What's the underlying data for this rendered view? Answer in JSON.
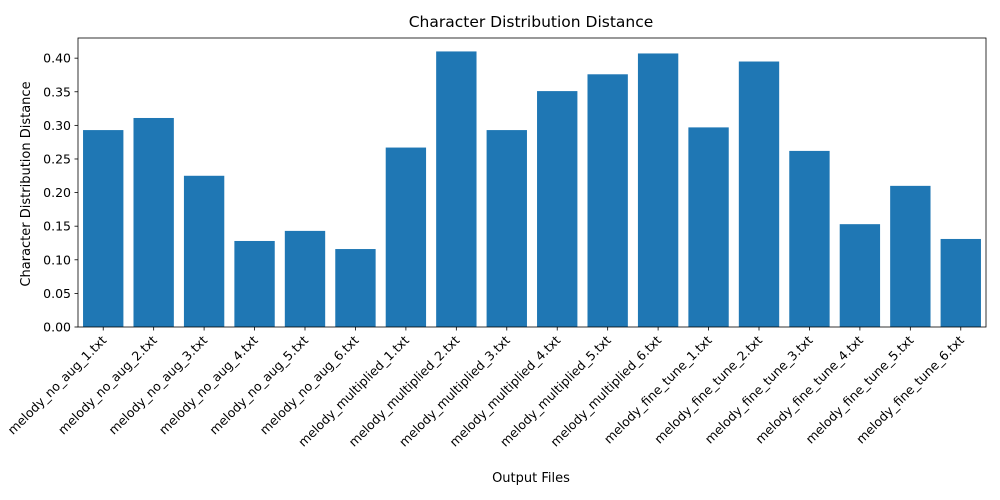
{
  "chart_data": {
    "type": "bar",
    "title": "Character Distribution Distance",
    "xlabel": "Output Files",
    "ylabel": "Character Distribution Distance",
    "ylim": [
      0,
      0.43
    ],
    "yticks": [
      0.0,
      0.05,
      0.1,
      0.15,
      0.2,
      0.25,
      0.3,
      0.35,
      0.4
    ],
    "ytick_labels": [
      "0.00",
      "0.05",
      "0.10",
      "0.15",
      "0.20",
      "0.25",
      "0.30",
      "0.35",
      "0.40"
    ],
    "grid": false,
    "bar_color": "#1f77b4",
    "categories": [
      "melody_no_aug_1.txt",
      "melody_no_aug_2.txt",
      "melody_no_aug_3.txt",
      "melody_no_aug_4.txt",
      "melody_no_aug_5.txt",
      "melody_no_aug_6.txt",
      "melody_multiplied_1.txt",
      "melody_multiplied_2.txt",
      "melody_multiplied_3.txt",
      "melody_multiplied_4.txt",
      "melody_multiplied_5.txt",
      "melody_multiplied_6.txt",
      "melody_fine_tune_1.txt",
      "melody_fine_tune_2.txt",
      "melody_fine_tune_3.txt",
      "melody_fine_tune_4.txt",
      "melody_fine_tune_5.txt",
      "melody_fine_tune_6.txt"
    ],
    "values": [
      0.293,
      0.311,
      0.225,
      0.128,
      0.143,
      0.116,
      0.267,
      0.41,
      0.293,
      0.351,
      0.376,
      0.407,
      0.297,
      0.395,
      0.262,
      0.153,
      0.21,
      0.131
    ]
  }
}
